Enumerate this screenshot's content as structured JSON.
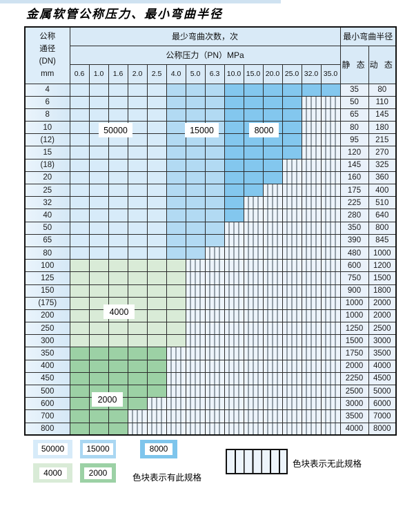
{
  "page": {
    "title": "金属软管公称压力、最小弯曲半径"
  },
  "colors": {
    "cycles_50000": "#d7ebf9",
    "cycles_15000": "#b2daf3",
    "cycles_8000": "#83c7ee",
    "cycles_4000": "#d9ebd7",
    "cycles_2000": "#9cd1a5",
    "no_spec_bg": "#edf4fb",
    "header_bg": "#d9eaf7"
  },
  "table": {
    "corner_lines": [
      "公称",
      "通径",
      "(DN)",
      "mm"
    ],
    "bend_cycles_header": "最少弯曲次数，次",
    "pressure_header": "公称压力（PN）MPa",
    "radius_header": "最小弯曲半径",
    "static_header": "静 态",
    "dynamic_header": "动 态",
    "pressure_columns": [
      "0.6",
      "1.0",
      "1.6",
      "2.0",
      "2.5",
      "4.0",
      "5.0",
      "6.3",
      "10.0",
      "15.0",
      "20.0",
      "25.0",
      "32.0",
      "35.0"
    ],
    "rows": [
      {
        "dn": "4",
        "zone": "blue",
        "colored_through": "35.0",
        "static": "35",
        "dynamic": "80"
      },
      {
        "dn": "6",
        "zone": "blue",
        "colored_through": "25.0",
        "static": "50",
        "dynamic": "110"
      },
      {
        "dn": "8",
        "zone": "blue",
        "colored_through": "25.0",
        "static": "65",
        "dynamic": "145"
      },
      {
        "dn": "10",
        "zone": "blue",
        "colored_through": "25.0",
        "static": "80",
        "dynamic": "180"
      },
      {
        "dn": "(12)",
        "zone": "blue",
        "colored_through": "25.0",
        "static": "95",
        "dynamic": "215"
      },
      {
        "dn": "15",
        "zone": "blue",
        "colored_through": "25.0",
        "static": "120",
        "dynamic": "270"
      },
      {
        "dn": "(18)",
        "zone": "blue",
        "colored_through": "20.0",
        "static": "145",
        "dynamic": "325"
      },
      {
        "dn": "20",
        "zone": "blue",
        "colored_through": "20.0",
        "static": "160",
        "dynamic": "360"
      },
      {
        "dn": "25",
        "zone": "blue",
        "colored_through": "15.0",
        "static": "175",
        "dynamic": "400"
      },
      {
        "dn": "32",
        "zone": "blue",
        "colored_through": "10.0",
        "static": "225",
        "dynamic": "510"
      },
      {
        "dn": "40",
        "zone": "blue",
        "colored_through": "10.0",
        "static": "280",
        "dynamic": "640"
      },
      {
        "dn": "50",
        "zone": "blue",
        "colored_through": "6.3",
        "static": "350",
        "dynamic": "800"
      },
      {
        "dn": "65",
        "zone": "blue",
        "colored_through": "6.3",
        "static": "390",
        "dynamic": "845"
      },
      {
        "dn": "80",
        "zone": "blue",
        "colored_through": "5.0",
        "static": "480",
        "dynamic": "1000"
      },
      {
        "dn": "100",
        "zone": "green-4000",
        "colored_through": "4.0",
        "static": "600",
        "dynamic": "1200"
      },
      {
        "dn": "125",
        "zone": "green-4000",
        "colored_through": "4.0",
        "static": "750",
        "dynamic": "1500"
      },
      {
        "dn": "150",
        "zone": "green-4000",
        "colored_through": "4.0",
        "static": "900",
        "dynamic": "1800"
      },
      {
        "dn": "(175)",
        "zone": "green-4000",
        "colored_through": "4.0",
        "static": "1000",
        "dynamic": "2000"
      },
      {
        "dn": "200",
        "zone": "green-4000",
        "colored_through": "4.0",
        "static": "1000",
        "dynamic": "2000"
      },
      {
        "dn": "250",
        "zone": "green-4000",
        "colored_through": "4.0",
        "static": "1250",
        "dynamic": "2500"
      },
      {
        "dn": "300",
        "zone": "green-4000",
        "colored_through": "4.0",
        "static": "1500",
        "dynamic": "3000"
      },
      {
        "dn": "350",
        "zone": "green-2000",
        "colored_through": "2.5",
        "static": "1750",
        "dynamic": "3500"
      },
      {
        "dn": "400",
        "zone": "green-2000",
        "colored_through": "2.5",
        "static": "2000",
        "dynamic": "4000"
      },
      {
        "dn": "450",
        "zone": "green-2000",
        "colored_through": "2.5",
        "static": "2250",
        "dynamic": "4500"
      },
      {
        "dn": "500",
        "zone": "green-2000",
        "colored_through": "2.5",
        "static": "2500",
        "dynamic": "5000"
      },
      {
        "dn": "600",
        "zone": "green-2000",
        "colored_through": "2.0",
        "static": "3000",
        "dynamic": "6000"
      },
      {
        "dn": "700",
        "zone": "green-2000",
        "colored_through": "1.6",
        "static": "3500",
        "dynamic": "7000"
      },
      {
        "dn": "800",
        "zone": "green-2000",
        "colored_through": "1.6",
        "static": "4000",
        "dynamic": "8000"
      }
    ],
    "cycle_labels": {
      "l50000": "50000",
      "l15000": "15000",
      "l8000": "8000",
      "l4000": "4000",
      "l2000": "2000"
    }
  },
  "legend": {
    "sw_50000": "50000",
    "sw_15000": "15000",
    "sw_8000": "8000",
    "sw_4000": "4000",
    "sw_2000": "2000",
    "has_spec_text": "色块表示有此规格",
    "no_spec_text": "色块表示无此规格"
  }
}
